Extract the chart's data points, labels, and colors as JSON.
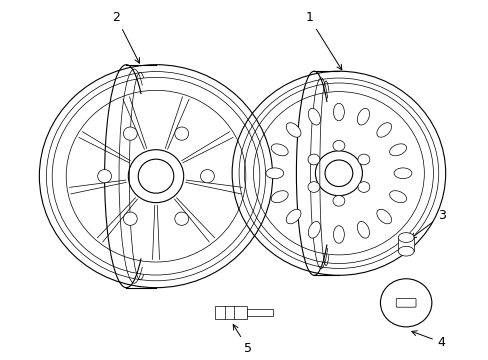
{
  "bg_color": "#ffffff",
  "line_color": "#000000",
  "lw": 0.8,
  "tlw": 0.5,
  "fig_width": 4.89,
  "fig_height": 3.6
}
